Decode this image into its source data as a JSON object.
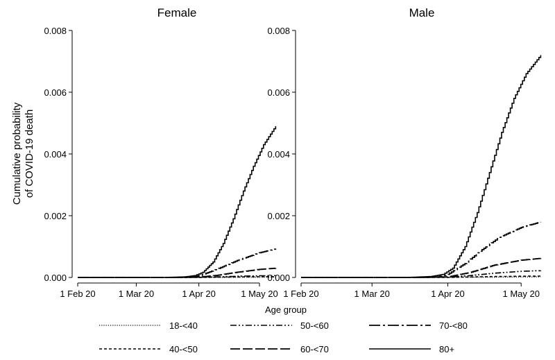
{
  "chart_data": {
    "type": "line",
    "ylabel_lines": [
      "Cumulative probability",
      "of COVID-19 death"
    ],
    "yticks": [
      0.0,
      0.002,
      0.004,
      0.006,
      0.008
    ],
    "ytick_labels": [
      "0.000",
      "0.002",
      "0.004",
      "0.006",
      "0.008"
    ],
    "ylim": [
      -0.00018,
      0.0082
    ],
    "xlim": [
      "2020-02-01",
      "2020-05-12"
    ],
    "xticks": [
      "2020-02-01",
      "2020-03-01",
      "2020-04-01",
      "2020-05-01"
    ],
    "xtick_labels": [
      "1 Feb 20",
      "1 Mar 20",
      "1 Apr 20",
      "1 May 20"
    ],
    "grid": false,
    "legend": {
      "title": "Age group",
      "placement": "bottom",
      "entries": [
        "18-<40",
        "50-<60",
        "70-<80",
        "40-<50",
        "60-<70",
        "80+"
      ]
    },
    "panels": [
      {
        "title": "Female",
        "series": [
          {
            "name": "18-<40",
            "x": [
              "2020-02-01",
              "2020-03-20",
              "2020-04-01",
              "2020-04-10",
              "2020-04-20",
              "2020-05-01",
              "2020-05-09"
            ],
            "values": [
              0,
              0,
              1e-06,
              2e-06,
              4e-06,
              6e-06,
              7e-06
            ]
          },
          {
            "name": "40-<50",
            "x": [
              "2020-02-01",
              "2020-03-20",
              "2020-04-01",
              "2020-04-10",
              "2020-04-20",
              "2020-05-01",
              "2020-05-09"
            ],
            "values": [
              0,
              0,
              2e-06,
              8e-06,
              1.6e-05,
              2.2e-05,
              2.5e-05
            ]
          },
          {
            "name": "50-<60",
            "x": [
              "2020-02-01",
              "2020-03-20",
              "2020-04-01",
              "2020-04-10",
              "2020-04-20",
              "2020-05-01",
              "2020-05-09"
            ],
            "values": [
              0,
              0,
              5e-06,
              2e-05,
              4e-05,
              5.5e-05,
              6e-05
            ]
          },
          {
            "name": "60-<70",
            "x": [
              "2020-02-01",
              "2020-03-20",
              "2020-04-01",
              "2020-04-10",
              "2020-04-20",
              "2020-05-01",
              "2020-05-09"
            ],
            "values": [
              0,
              0,
              1e-05,
              7e-05,
              0.00017,
              0.00026,
              0.0003
            ]
          },
          {
            "name": "70-<80",
            "x": [
              "2020-02-01",
              "2020-03-20",
              "2020-03-28",
              "2020-04-01",
              "2020-04-10",
              "2020-04-20",
              "2020-05-01",
              "2020-05-09"
            ],
            "values": [
              0,
              0,
              1e-05,
              5e-05,
              0.00027,
              0.00055,
              0.0008,
              0.00093
            ]
          },
          {
            "name": "80+",
            "x": [
              "2020-02-01",
              "2020-03-15",
              "2020-03-25",
              "2020-03-30",
              "2020-04-03",
              "2020-04-08",
              "2020-04-13",
              "2020-04-18",
              "2020-04-23",
              "2020-04-28",
              "2020-05-03",
              "2020-05-09"
            ],
            "values": [
              0,
              0,
              2e-05,
              6e-05,
              0.00017,
              0.0005,
              0.0011,
              0.0019,
              0.0028,
              0.0036,
              0.0043,
              0.0049
            ]
          }
        ]
      },
      {
        "title": "Male",
        "series": [
          {
            "name": "18-<40",
            "x": [
              "2020-02-01",
              "2020-03-20",
              "2020-04-01",
              "2020-04-10",
              "2020-04-20",
              "2020-05-01",
              "2020-05-09"
            ],
            "values": [
              0,
              0,
              2e-06,
              6e-06,
              1e-05,
              1.3e-05,
              1.5e-05
            ]
          },
          {
            "name": "40-<50",
            "x": [
              "2020-02-01",
              "2020-03-20",
              "2020-04-01",
              "2020-04-10",
              "2020-04-20",
              "2020-05-01",
              "2020-05-09"
            ],
            "values": [
              0,
              0,
              3e-06,
              1.5e-05,
              3e-05,
              4e-05,
              4.5e-05
            ]
          },
          {
            "name": "50-<60",
            "x": [
              "2020-02-01",
              "2020-03-20",
              "2020-04-01",
              "2020-04-10",
              "2020-04-20",
              "2020-05-01",
              "2020-05-09"
            ],
            "values": [
              0,
              0,
              1e-05,
              6e-05,
              0.00014,
              0.0002,
              0.00022
            ]
          },
          {
            "name": "60-<70",
            "x": [
              "2020-02-01",
              "2020-03-20",
              "2020-04-01",
              "2020-04-10",
              "2020-04-20",
              "2020-05-01",
              "2020-05-09"
            ],
            "values": [
              0,
              0,
              2e-05,
              0.00016,
              0.0004,
              0.00056,
              0.00062
            ]
          },
          {
            "name": "70-<80",
            "x": [
              "2020-02-01",
              "2020-03-20",
              "2020-03-28",
              "2020-04-01",
              "2020-04-08",
              "2020-04-15",
              "2020-04-22",
              "2020-05-01",
              "2020-05-09"
            ],
            "values": [
              0,
              0,
              2e-05,
              0.0001,
              0.00045,
              0.0009,
              0.0013,
              0.00162,
              0.0018
            ]
          },
          {
            "name": "80+",
            "x": [
              "2020-02-01",
              "2020-03-15",
              "2020-03-25",
              "2020-03-30",
              "2020-04-03",
              "2020-04-08",
              "2020-04-13",
              "2020-04-18",
              "2020-04-23",
              "2020-04-28",
              "2020-05-03",
              "2020-05-09"
            ],
            "values": [
              0,
              0,
              3e-05,
              0.0001,
              0.0003,
              0.001,
              0.0021,
              0.0034,
              0.0047,
              0.0058,
              0.0066,
              0.0072
            ]
          }
        ]
      }
    ],
    "styles": {
      "18-<40": {
        "dash": "1.2 2",
        "width": 1.2
      },
      "40-<50": {
        "dash": "4 3",
        "width": 1.6
      },
      "50-<60": {
        "dash": "9 3 2 3 2 3",
        "width": 1.6
      },
      "60-<70": {
        "dash": "14 4",
        "width": 1.8
      },
      "70-<80": {
        "dash": "16 4 3 4",
        "width": 1.8
      },
      "80+": {
        "dash": "",
        "width": 1.6
      }
    },
    "line_color": "#000000",
    "title_color": "#1a476f"
  }
}
